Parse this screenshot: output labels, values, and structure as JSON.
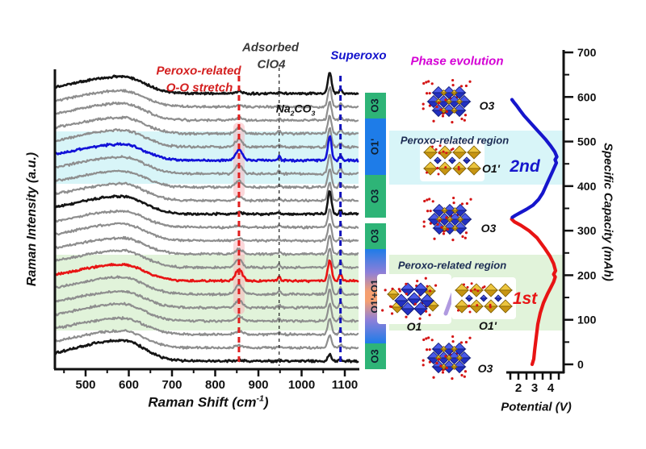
{
  "figure_title": "Operando Raman and phase evolution figure",
  "left_panel": {
    "ylabel": "Raman Intensity (a.u.)",
    "xlabel": {
      "pre": "Raman Shift (cm",
      "sup": "-1",
      "post": ")"
    },
    "xticks": [
      "500",
      "600",
      "700",
      "800",
      "900",
      "1000",
      "1100"
    ],
    "annotations": {
      "peroxo": [
        "Peroxo-related",
        "O-O stretch"
      ],
      "adsorbed": [
        "Adsorbed",
        "ClO4"
      ],
      "na2co3": {
        "p1": "Na",
        "s1": "2",
        "p2": "CO",
        "s2": "3"
      },
      "superoxo": "Superoxo"
    }
  },
  "phase_bar": {
    "segments": [
      {
        "label": "O3",
        "kind": "green"
      },
      {
        "label": "O1'",
        "kind": "blue"
      },
      {
        "label": "O3",
        "kind": "green"
      },
      {
        "label": "O3",
        "kind": "green"
      },
      {
        "label": "O1'+O1",
        "kind": "gradient"
      },
      {
        "label": "O3",
        "kind": "green"
      }
    ]
  },
  "evolution": {
    "title": "Phase evolution",
    "regions": [
      {
        "label": "Peroxo-related region"
      },
      {
        "label": "Peroxo-related region"
      }
    ],
    "structures": [
      {
        "label": "O3"
      },
      {
        "label": "O1'"
      },
      {
        "label": "O3"
      },
      {
        "label": "O1"
      },
      {
        "label": "O1'"
      },
      {
        "label": "O3"
      }
    ],
    "cycles": [
      {
        "label": "2nd",
        "color": "#1616cc"
      },
      {
        "label": "1st",
        "color": "#e81414"
      }
    ]
  },
  "right_panel": {
    "xlabel": "Potential (V)",
    "ylabel": "Specific Capacity (mAh)",
    "xticks": [
      "2",
      "3",
      "4"
    ],
    "yticks": [
      "0",
      "100",
      "200",
      "300",
      "400",
      "500",
      "600",
      "700"
    ]
  },
  "colors": {
    "band_cyan": "#d8f5f8",
    "band_green": "#e1f3da",
    "bar_green": "#2eb477",
    "bar_blue": "#1e7ce8",
    "trace_black": "#151515",
    "trace_gray": "#8e8e8e",
    "trace_blue": "#1212d8",
    "trace_red": "#e81414",
    "marker_red": "#e02020",
    "marker_black": "#2b2b2b",
    "marker_blue": "#1212bb",
    "annot_red": "#d42020",
    "annot_gray": "#3a3a3a",
    "annot_blue": "#1212cc",
    "magenta": "#d400d4",
    "region_text": "#1c2c54",
    "ribbon_pink": "#f8b0b6",
    "slash_lavender": "#b09ae0"
  },
  "chart_data": [
    {
      "type": "line",
      "title": "Operando Raman spectra (stacked waterfall, 21 scans)",
      "xlabel": "Raman Shift (cm-1)",
      "ylabel": "Raman Intensity (a.u.)",
      "x_range_cm1": [
        430,
        1130
      ],
      "xticks": [
        500,
        600,
        700,
        800,
        900,
        1000,
        1100
      ],
      "peak_assignments": {
        "broad_band_cm1": 585,
        "peroxo_oo_stretch_cm1": 855,
        "adsorbed_clo4_cm1": 948,
        "na2co3_cm1": 1065,
        "superoxo_cm1": 1090
      },
      "marker_lines": [
        {
          "name": "peroxo-oo-stretch",
          "cm1": 855,
          "color": "#e02020",
          "dash": "7 5",
          "width": 3
        },
        {
          "name": "adsorbed-clo4",
          "cm1": 948,
          "color": "#2b2b2b",
          "dash": "4 4",
          "width": 1.3
        },
        {
          "name": "superoxo",
          "cm1": 1090,
          "color": "#1212bb",
          "dash": "7 5",
          "width": 3
        }
      ],
      "traces": [
        {
          "color": "black",
          "hump": 21,
          "p855": 2,
          "p948": 2,
          "p1065": 26,
          "p1090": 4
        },
        {
          "color": "gray",
          "hump": 20,
          "p855": 2,
          "p948": 2,
          "p1065": 24,
          "p1090": 4
        },
        {
          "color": "gray",
          "hump": 21,
          "p855": 3,
          "p948": 2,
          "p1065": 23,
          "p1090": 4
        },
        {
          "color": "gray",
          "hump": 20,
          "p855": 7,
          "p948": 3,
          "p1065": 22,
          "p1090": 5
        },
        {
          "color": "gray",
          "hump": 21,
          "p855": 10,
          "p948": 3,
          "p1065": 23,
          "p1090": 5
        },
        {
          "color": "blue",
          "hump": 20,
          "p855": 13,
          "p948": 5,
          "p1065": 30,
          "p1090": 6
        },
        {
          "color": "gray",
          "hump": 21,
          "p855": 11,
          "p948": 4,
          "p1065": 24,
          "p1090": 6
        },
        {
          "color": "gray",
          "hump": 20,
          "p855": 8,
          "p948": 3,
          "p1065": 23,
          "p1090": 5
        },
        {
          "color": "gray",
          "hump": 21,
          "p855": 5,
          "p948": 2,
          "p1065": 22,
          "p1090": 4
        },
        {
          "color": "black",
          "hump": 22,
          "p855": 2,
          "p948": 2,
          "p1065": 28,
          "p1090": 4
        },
        {
          "color": "gray",
          "hump": 20,
          "p855": 2,
          "p948": 2,
          "p1065": 23,
          "p1090": 4
        },
        {
          "color": "gray",
          "hump": 21,
          "p855": 3,
          "p948": 2,
          "p1065": 22,
          "p1090": 4
        },
        {
          "color": "gray",
          "hump": 20,
          "p855": 6,
          "p948": 3,
          "p1065": 23,
          "p1090": 6
        },
        {
          "color": "gray",
          "hump": 21,
          "p855": 10,
          "p948": 4,
          "p1065": 24,
          "p1090": 7
        },
        {
          "color": "red",
          "hump": 20,
          "p855": 14,
          "p948": 6,
          "p1065": 26,
          "p1090": 9
        },
        {
          "color": "gray",
          "hump": 21,
          "p855": 12,
          "p948": 4,
          "p1065": 24,
          "p1090": 8
        },
        {
          "color": "gray",
          "hump": 20,
          "p855": 9,
          "p948": 3,
          "p1065": 23,
          "p1090": 7
        },
        {
          "color": "gray",
          "hump": 21,
          "p855": 6,
          "p948": 3,
          "p1065": 21,
          "p1090": 6
        },
        {
          "color": "gray",
          "hump": 20,
          "p855": 4,
          "p948": 2,
          "p1065": 19,
          "p1090": 5
        },
        {
          "color": "gray",
          "hump": 21,
          "p855": 3,
          "p948": 2,
          "p1065": 16,
          "p1090": 4
        },
        {
          "color": "black",
          "hump": 26,
          "p855": 1,
          "p948": 1,
          "p1065": 8,
          "p1090": 2
        }
      ]
    },
    {
      "type": "line",
      "title": "Galvanostatic profile: Potential vs cumulative Specific Capacity",
      "xlabel": "Potential (V)",
      "ylabel": "Specific Capacity (mAh)",
      "x_range": [
        1.3,
        4.6
      ],
      "y_range": [
        0,
        700
      ],
      "xticks": [
        2,
        3,
        4
      ],
      "yticks": [
        0,
        100,
        200,
        300,
        400,
        500,
        600,
        700
      ],
      "series": [
        {
          "name": "1st",
          "color": "#e81414",
          "points": [
            [
              2.85,
              0
            ],
            [
              2.95,
              12
            ],
            [
              3.0,
              30
            ],
            [
              3.1,
              60
            ],
            [
              3.2,
              90
            ],
            [
              3.35,
              115
            ],
            [
              3.55,
              138
            ],
            [
              3.8,
              158
            ],
            [
              4.0,
              172
            ],
            [
              4.18,
              185
            ],
            [
              4.28,
              196
            ],
            [
              4.18,
              202
            ],
            [
              4.3,
              210
            ],
            [
              4.18,
              226
            ],
            [
              3.95,
              243
            ],
            [
              3.6,
              262
            ],
            [
              3.15,
              284
            ],
            [
              2.65,
              300
            ],
            [
              2.15,
              312
            ],
            [
              1.75,
              320
            ],
            [
              1.58,
              326
            ]
          ]
        },
        {
          "name": "2nd",
          "color": "#1616cc",
          "points": [
            [
              1.62,
              330
            ],
            [
              1.8,
              334
            ],
            [
              2.1,
              340
            ],
            [
              2.5,
              348
            ],
            [
              2.9,
              357
            ],
            [
              3.25,
              370
            ],
            [
              3.5,
              384
            ],
            [
              3.7,
              400
            ],
            [
              3.9,
              416
            ],
            [
              4.1,
              432
            ],
            [
              4.25,
              444
            ],
            [
              4.35,
              452
            ],
            [
              4.27,
              459
            ],
            [
              4.38,
              466
            ],
            [
              4.25,
              477
            ],
            [
              4.0,
              490
            ],
            [
              3.7,
              504
            ],
            [
              3.35,
              518
            ],
            [
              3.0,
              532
            ],
            [
              2.65,
              546
            ],
            [
              2.35,
              558
            ],
            [
              2.1,
              570
            ],
            [
              1.9,
              580
            ],
            [
              1.72,
              588
            ],
            [
              1.6,
              594
            ]
          ]
        }
      ]
    }
  ]
}
